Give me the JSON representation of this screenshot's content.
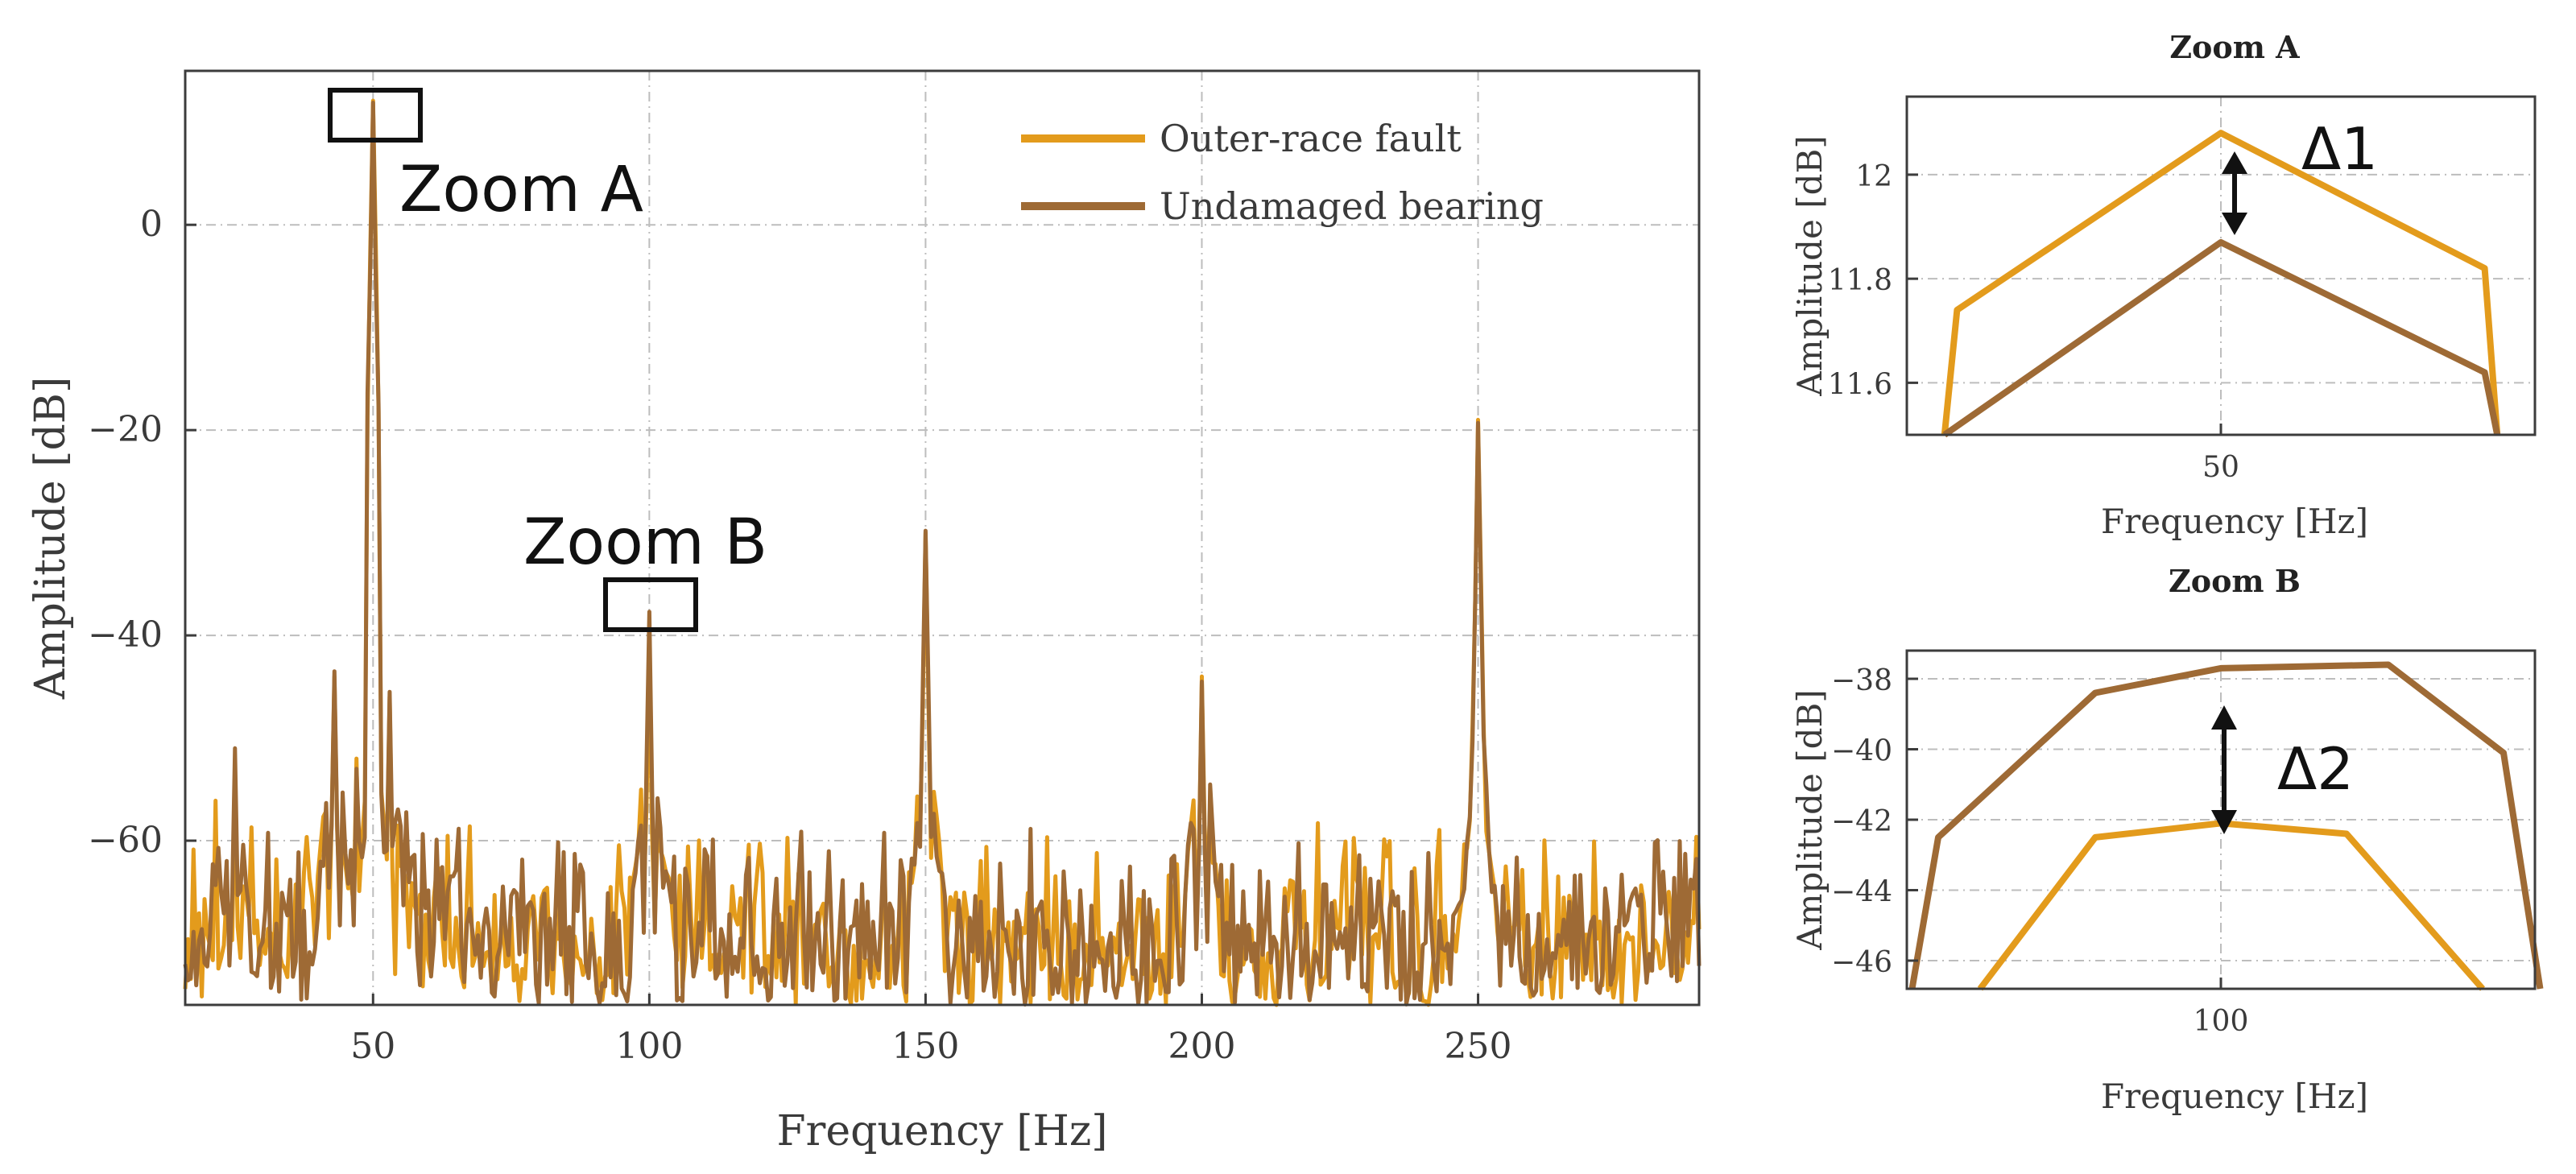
{
  "chart_data": [
    {
      "type": "line",
      "title": "",
      "xlabel": "Frequency [Hz]",
      "ylabel": "Amplitude [dB]",
      "xlim": [
        16,
        290
      ],
      "ylim": [
        -76,
        15
      ],
      "xticks": [
        50,
        100,
        150,
        200,
        250
      ],
      "yticks": [
        0,
        -20,
        -40,
        -60
      ],
      "grid": true,
      "legend_position": "top-right",
      "series": [
        {
          "name": "Outer-race fault",
          "color": "#E39B1C",
          "peaks": [
            {
              "x": 25,
              "y": -55
            },
            {
              "x": 43,
              "y": -44
            },
            {
              "x": 47,
              "y": -52
            },
            {
              "x": 50,
              "y": 12.1
            },
            {
              "x": 53,
              "y": -46
            },
            {
              "x": 100,
              "y": -42.1
            },
            {
              "x": 150,
              "y": -30
            },
            {
              "x": 200,
              "y": -44
            },
            {
              "x": 250,
              "y": -19
            }
          ],
          "noise_floor_db": [
            -76,
            -58
          ]
        },
        {
          "name": "Undamaged bearing",
          "color": "#9E6A35",
          "peaks": [
            {
              "x": 25,
              "y": -51
            },
            {
              "x": 43,
              "y": -43.5
            },
            {
              "x": 47,
              "y": -53
            },
            {
              "x": 50,
              "y": 11.9
            },
            {
              "x": 53,
              "y": -45.5
            },
            {
              "x": 100,
              "y": -37.7
            },
            {
              "x": 150,
              "y": -29.8
            },
            {
              "x": 200,
              "y": -44.5
            },
            {
              "x": 250,
              "y": -19.3
            }
          ],
          "noise_floor_db": [
            -76,
            -58
          ]
        }
      ],
      "annotations": [
        "Zoom A",
        "Zoom B"
      ]
    },
    {
      "type": "line",
      "title": "Zoom A",
      "xlabel": "Frequency [Hz]",
      "ylabel": "Amplitude [dB]",
      "xlim": [
        47.5,
        52.5
      ],
      "ylim": [
        11.5,
        12.15
      ],
      "xticks": [
        50
      ],
      "yticks": [
        12,
        11.8,
        11.6
      ],
      "series": [
        {
          "name": "Outer-race fault",
          "x": [
            47.8,
            47.9,
            50,
            52.1,
            52.2
          ],
          "y": [
            11.45,
            11.74,
            12.08,
            11.82,
            11.45
          ]
        },
        {
          "name": "Undamaged bearing",
          "x": [
            47.8,
            50,
            52.1,
            52.2
          ],
          "y": [
            11.45,
            11.87,
            11.62,
            11.45
          ]
        }
      ],
      "annotation": "Δ1"
    },
    {
      "type": "line",
      "title": "Zoom B",
      "xlabel": "Frequency [Hz]",
      "ylabel": "Amplitude [dB]",
      "xlim": [
        97,
        103
      ],
      "ylim": [
        -46.8,
        -37.2
      ],
      "xticks": [
        100
      ],
      "yticks": [
        -38,
        -40,
        -42,
        -44,
        -46
      ],
      "series": [
        {
          "name": "Undamaged bearing",
          "x": [
            97.05,
            97.3,
            98.8,
            100,
            101.6,
            102.7,
            103.05
          ],
          "y": [
            -46.8,
            -42.5,
            -38.4,
            -37.7,
            -37.6,
            -40.1,
            -46.8
          ]
        },
        {
          "name": "Outer-race fault",
          "x": [
            97.7,
            98.8,
            100,
            101.2,
            102.5
          ],
          "y": [
            -46.8,
            -42.5,
            -42.1,
            -42.4,
            -46.8
          ]
        }
      ],
      "annotation": "Δ2"
    }
  ]
}
